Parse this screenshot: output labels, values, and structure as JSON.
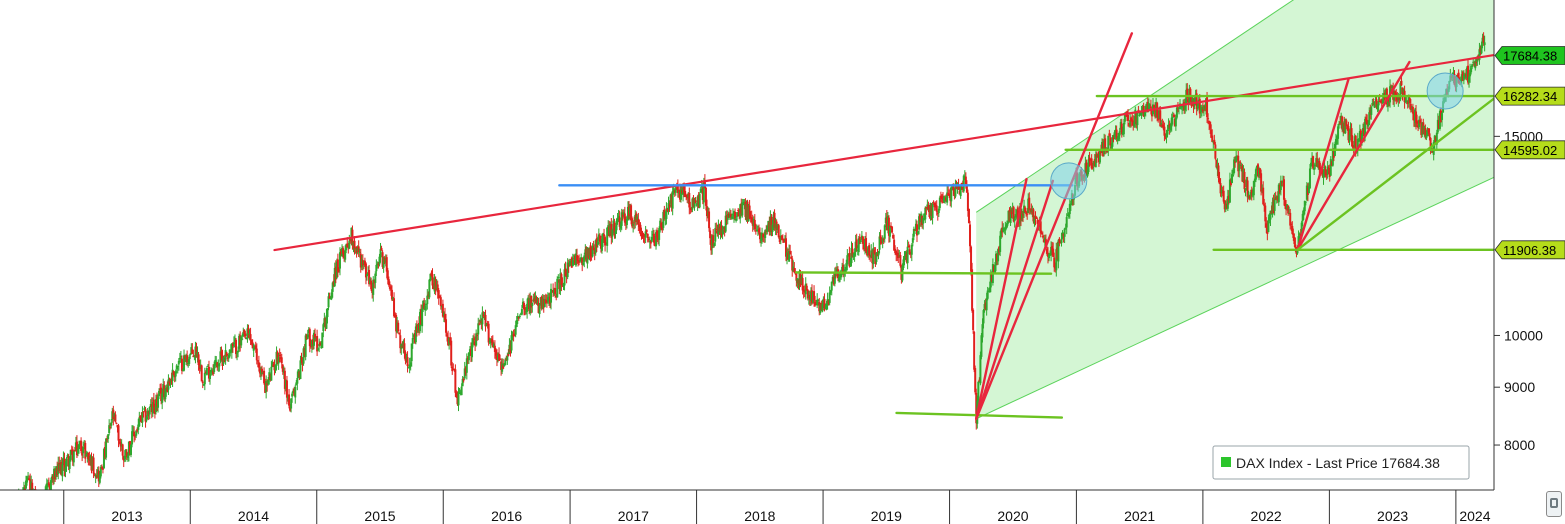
{
  "chart_data": {
    "type": "line",
    "subtype": "candlestick",
    "title": "",
    "xlabel": "",
    "ylabel": "",
    "y_scale": "log",
    "ylim": [
      7300,
      19800
    ],
    "x_range": [
      "2012-07-01",
      "2024-04-20"
    ],
    "grid": false,
    "y_ticks": [
      8000,
      9000,
      10000,
      15000
    ],
    "y_tick_labels": [
      "8000",
      "9000",
      "10000",
      "15000"
    ],
    "x_labels": [
      "2013",
      "2014",
      "2015",
      "2016",
      "2017",
      "2018",
      "2019",
      "2020",
      "2021",
      "2022",
      "2023",
      "2024"
    ],
    "up_color": "#2ea82e",
    "down_color": "#e0201c",
    "legend": {
      "placement": "bottom-right",
      "text": "DAX Index - Last Price 17684.38",
      "swatch": "#2cc52c"
    },
    "series": [
      {
        "name": "DAX Index - Last Price",
        "x": [
          "2012-07-01",
          "2012-09-20",
          "2012-10-25",
          "2012-11-25",
          "2013-01-20",
          "2013-02-20",
          "2013-04-15",
          "2013-05-22",
          "2013-06-24",
          "2013-08-10",
          "2013-09-25",
          "2013-11-25",
          "2014-01-20",
          "2014-02-05",
          "2014-04-10",
          "2014-06-20",
          "2014-08-08",
          "2014-09-15",
          "2014-10-16",
          "2014-12-05",
          "2015-01-10",
          "2015-02-20",
          "2015-04-10",
          "2015-06-10",
          "2015-07-05",
          "2015-07-25",
          "2015-08-24",
          "2015-09-24",
          "2015-11-30",
          "2016-01-10",
          "2016-02-11",
          "2016-04-20",
          "2016-06-24",
          "2016-08-15",
          "2016-10-20",
          "2016-12-31",
          "2017-03-15",
          "2017-06-20",
          "2017-09-01",
          "2017-11-05",
          "2017-12-31",
          "2018-01-23",
          "2018-02-12",
          "2018-05-15",
          "2018-06-25",
          "2018-08-10",
          "2018-10-25",
          "2018-12-27",
          "2019-02-10",
          "2019-04-20",
          "2019-05-31",
          "2019-07-05",
          "2019-08-15",
          "2019-10-10",
          "2019-12-31",
          "2020-02-19",
          "2020-03-02",
          "2020-03-18",
          "2020-04-08",
          "2020-06-08",
          "2020-08-15",
          "2020-10-30",
          "2020-12-31",
          "2021-03-10",
          "2021-05-25",
          "2021-08-15",
          "2021-09-20",
          "2021-11-17",
          "2021-12-31",
          "2022-01-05",
          "2022-03-07",
          "2022-04-05",
          "2022-05-15",
          "2022-06-10",
          "2022-07-05",
          "2022-08-15",
          "2022-09-29",
          "2022-11-15",
          "2022-12-31",
          "2023-02-05",
          "2023-03-20",
          "2023-05-20",
          "2023-07-31",
          "2023-10-27",
          "2023-12-10",
          "2024-01-31",
          "2024-03-01",
          "2024-03-25"
        ],
        "y": [
          6700,
          7400,
          7000,
          7450,
          7800,
          8000,
          7500,
          8500,
          7800,
          8400,
          8700,
          9400,
          9700,
          9200,
          9600,
          10000,
          9000,
          9700,
          8600,
          10000,
          9800,
          11300,
          12300,
          11000,
          11800,
          11400,
          10000,
          9500,
          11300,
          10200,
          8800,
          10400,
          9300,
          10700,
          10600,
          11500,
          12000,
          12800,
          12100,
          13500,
          13000,
          13500,
          12100,
          13100,
          12300,
          12600,
          11200,
          10500,
          11300,
          12100,
          11700,
          12600,
          11400,
          12700,
          13250,
          13700,
          11500,
          8440,
          10500,
          12600,
          13000,
          11600,
          13700,
          14500,
          15500,
          15900,
          15100,
          16290,
          15900,
          16290,
          12800,
          14400,
          13300,
          14000,
          12400,
          13700,
          11900,
          14300,
          13900,
          15500,
          14700,
          16200,
          16450,
          14600,
          16750,
          16900,
          17700,
          18200
        ]
      }
    ],
    "price_tags": [
      {
        "label": "17684.38",
        "value": 17684.38,
        "color": "#1fc41f"
      },
      {
        "label": "16282.34",
        "value": 16282.34,
        "color": "#b5dc1a"
      },
      {
        "label": "14595.02",
        "value": 14595.02,
        "color": "#b5dc1a"
      },
      {
        "label": "11906.38",
        "value": 11906.38,
        "color": "#b5dc1a"
      }
    ],
    "annotation_lines": [
      {
        "kind": "resistance",
        "color": "#e8263d",
        "from": [
          "2014-09-01",
          11900
        ],
        "to": [
          "2024-04-20",
          17700
        ]
      },
      {
        "kind": "horizontal",
        "color": "#3a8ef5",
        "from": [
          "2016-12-01",
          13575
        ],
        "to": [
          "2020-12-20",
          13575
        ]
      },
      {
        "kind": "horizontal",
        "color": "#6cc321",
        "from": [
          "2018-10-15",
          11370
        ],
        "to": [
          "2020-10-20",
          11340
        ]
      },
      {
        "kind": "horizontal",
        "color": "#6cc321",
        "from": [
          "2019-08-01",
          8540
        ],
        "to": [
          "2020-11-20",
          8460
        ]
      },
      {
        "kind": "horizontal",
        "color": "#6cc321",
        "from": [
          "2021-03-01",
          16282.34
        ],
        "to": [
          "2024-04-20",
          16282.34
        ]
      },
      {
        "kind": "horizontal",
        "color": "#6cc321",
        "from": [
          "2020-12-01",
          14595.02
        ],
        "to": [
          "2024-04-20",
          14595.02
        ]
      },
      {
        "kind": "horizontal",
        "color": "#6cc321",
        "from": [
          "2022-02-01",
          11906.38
        ],
        "to": [
          "2024-04-20",
          11906.38
        ]
      },
      {
        "kind": "trend",
        "color": "#e8263d",
        "from": [
          "2020-03-18",
          8440
        ],
        "to": [
          "2020-08-10",
          13750
        ]
      },
      {
        "kind": "trend",
        "color": "#e8263d",
        "from": [
          "2020-03-18",
          8440
        ],
        "to": [
          "2020-10-25",
          13700
        ]
      },
      {
        "kind": "trend",
        "color": "#e8263d",
        "from": [
          "2020-03-18",
          8440
        ],
        "to": [
          "2021-06-10",
          18500
        ]
      },
      {
        "kind": "trend",
        "color": "#e8263d",
        "from": [
          "2022-10-01",
          11906.38
        ],
        "to": [
          "2023-02-25",
          16850
        ]
      },
      {
        "kind": "trend",
        "color": "#e8263d",
        "from": [
          "2022-10-01",
          11906.38
        ],
        "to": [
          "2023-08-20",
          17450
        ]
      },
      {
        "kind": "trend",
        "color": "#6cc321",
        "from": [
          "2022-10-01",
          11906.38
        ],
        "to": [
          "2024-04-20",
          16200
        ]
      }
    ],
    "channel": {
      "fill": "#ccf5cc",
      "edge": "#5bd35b",
      "polygon": [
        [
          "2020-03-18",
          12850
        ],
        [
          "2022-12-01",
          20500
        ],
        [
          "2024-04-20",
          20500
        ],
        [
          "2024-04-20",
          13800
        ],
        [
          "2020-03-18",
          8440
        ]
      ],
      "upper_line": {
        "from": [
          "2020-03-18",
          12850
        ],
        "to": [
          "2022-12-01",
          20500
        ]
      },
      "lower_line": {
        "from": [
          "2020-03-18",
          8440
        ],
        "to": [
          "2024-04-20",
          13800
        ]
      }
    },
    "highlight_circles": [
      {
        "center": [
          "2020-12-10",
          13700
        ],
        "color": "#7fd2ea"
      },
      {
        "center": [
          "2023-12-01",
          16450
        ],
        "color": "#7fd2ea"
      }
    ]
  }
}
